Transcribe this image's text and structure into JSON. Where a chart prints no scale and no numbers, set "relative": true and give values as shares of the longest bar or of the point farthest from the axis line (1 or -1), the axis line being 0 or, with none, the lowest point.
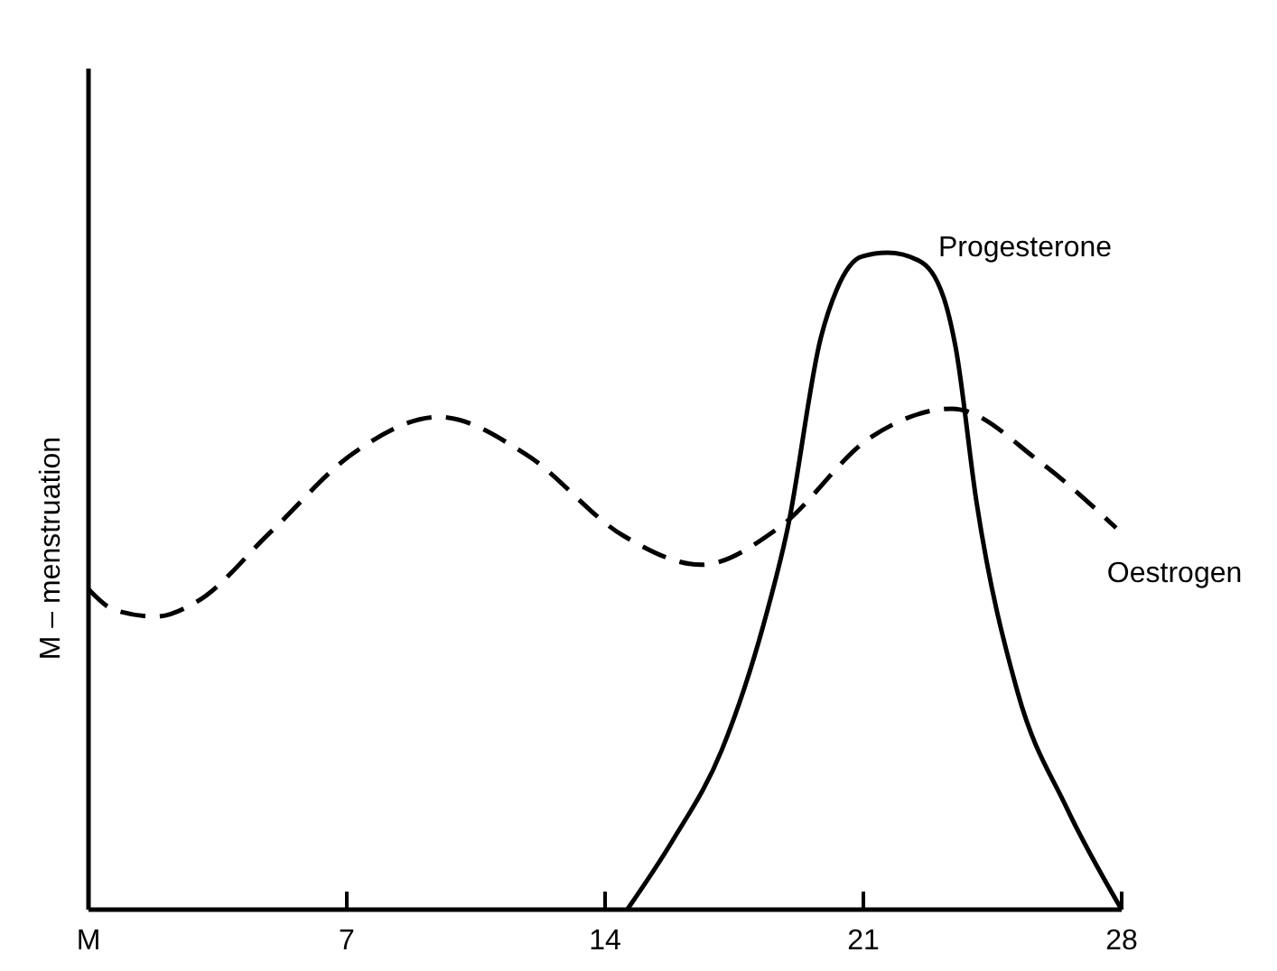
{
  "chart_data": {
    "type": "line",
    "ylabel": "M – menstruation",
    "relative": true,
    "xlim": [
      0,
      28
    ],
    "xticks": [
      {
        "value": 0,
        "label": "M"
      },
      7,
      14,
      21,
      28
    ],
    "color": "#000000",
    "series": [
      {
        "name": "Progesterone",
        "color": "#000000",
        "line_style": "solid",
        "x": [
          14.6,
          15.84,
          17.17,
          18.28,
          18.95,
          19.84,
          20.28,
          20.95,
          21.66,
          22.5,
          23.18,
          23.5,
          24.07,
          25.18,
          26.5,
          28
        ],
        "values": [
          0,
          0.106,
          0.244,
          0.431,
          0.581,
          0.869,
          0.944,
          0.994,
          1,
          0.988,
          0.931,
          0.856,
          0.619,
          0.331,
          0.156,
          0
        ]
      },
      {
        "name": "Oestrogen",
        "color": "#000000",
        "line_style": "dashed",
        "x": [
          0,
          0.71,
          1.82,
          2.94,
          4.94,
          7.16,
          9.5,
          11.83,
          14.5,
          16.6,
          18.7,
          21.2,
          23.4,
          25.8,
          27.85
        ],
        "values": [
          0.4875,
          0.456,
          0.446,
          0.469,
          0.575,
          0.694,
          0.75,
          0.694,
          0.569,
          0.525,
          0.581,
          0.719,
          0.7625,
          0.681,
          0.581
        ]
      }
    ]
  }
}
